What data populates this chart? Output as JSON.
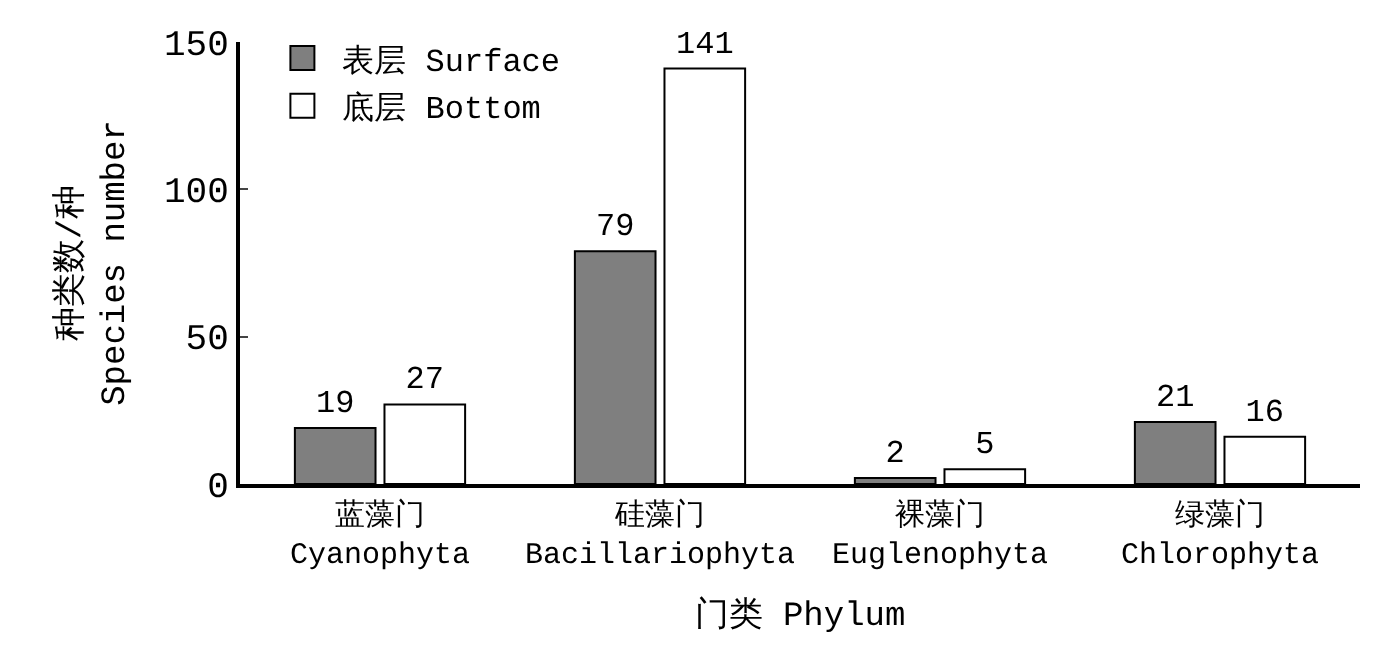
{
  "chart_data": {
    "type": "bar",
    "xlabel": "门类 Phylum",
    "ylabel": "种类数/种\nSpecies number",
    "categories": [
      "蓝藻门\nCyanophyta",
      "硅藻门\nBacillariophyta",
      "裸藻门\nEuglenophyta",
      "绿藻门\nChlorophyta"
    ],
    "series": [
      {
        "name": "表层 Surface",
        "color": "#7f7f7f",
        "values": [
          19,
          79,
          2,
          21
        ]
      },
      {
        "name": "底层 Bottom",
        "color": "#ffffff",
        "values": [
          27,
          141,
          5,
          16
        ]
      }
    ],
    "ylim": [
      0,
      150
    ],
    "yticks": [
      0,
      50,
      100,
      150
    ],
    "data_labels": true,
    "legend": "top left"
  }
}
